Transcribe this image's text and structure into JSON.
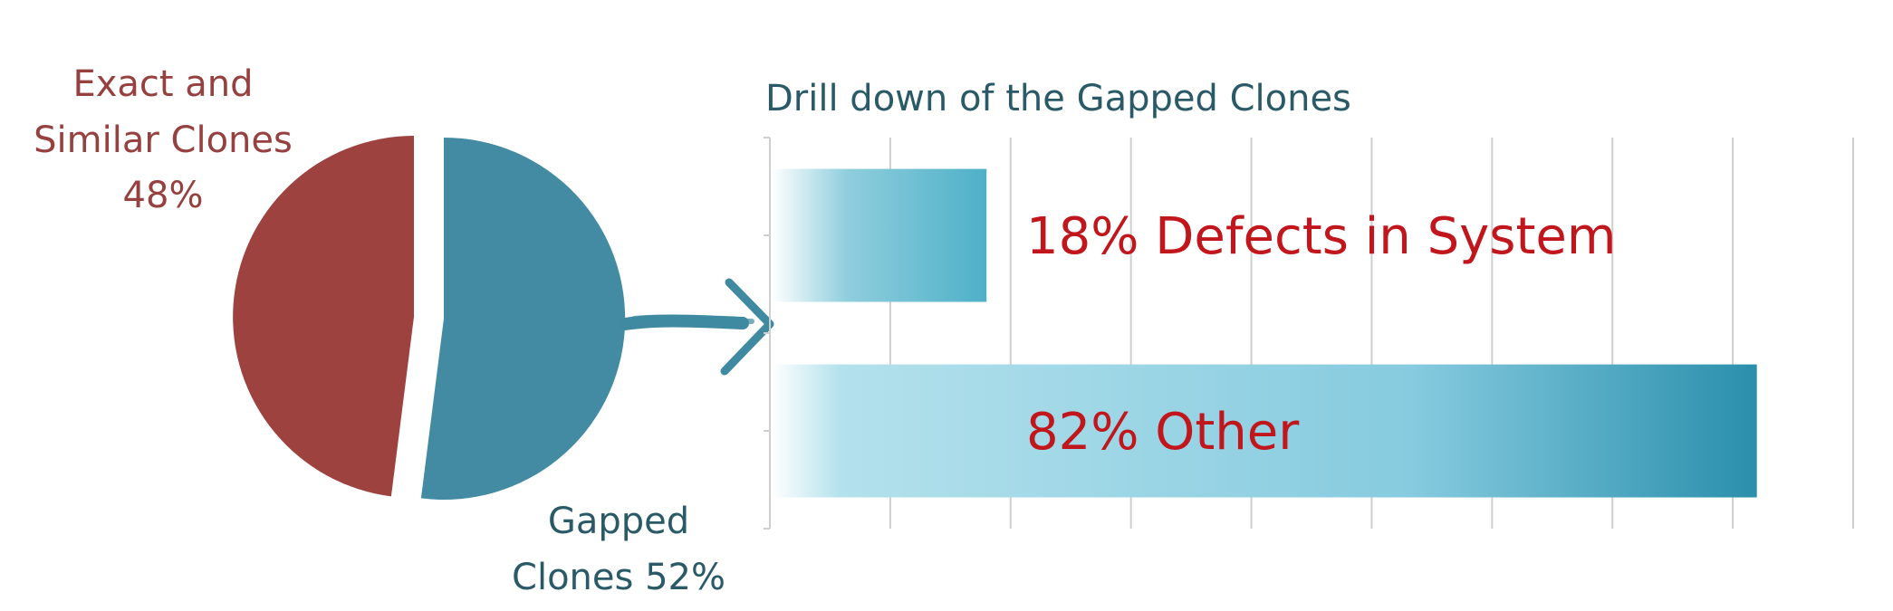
{
  "colors": {
    "exact_slice": "#9e4240",
    "gapped_slice": "#428ba2",
    "exact_label": "#96403f",
    "gapped_label": "#2a5a68",
    "title": "#2a5a68",
    "bar_dark": "#2a90ad",
    "bar_light": "#a9dcea",
    "bar_label": "#c0161c",
    "grid": "#cfcfcf",
    "arrow": "#3f8aa0"
  },
  "arrow_icon": "arrow-right-icon",
  "chart_data": [
    {
      "type": "pie",
      "series": [
        {
          "name": "Exact and Similar Clones",
          "value": 48
        },
        {
          "name": "Gapped Clones",
          "value": 52
        }
      ],
      "labels": {
        "exact": {
          "line1": "Exact and",
          "line2": "Similar Clones",
          "line3": "48%"
        },
        "gapped": {
          "line1": "Gapped",
          "line2": "Clones 52%"
        }
      }
    },
    {
      "type": "bar",
      "orientation": "horizontal",
      "title": "Drill down of the Gapped Clones",
      "categories": [
        "18% Defects in System",
        "82% Other"
      ],
      "values": [
        18,
        82
      ],
      "xlim": [
        0,
        90
      ],
      "grid": true,
      "tick_labels": false
    }
  ]
}
